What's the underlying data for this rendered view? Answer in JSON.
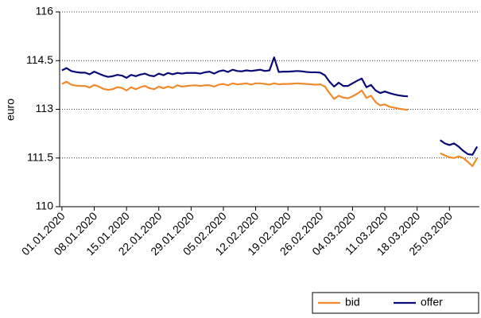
{
  "chart_data": {
    "type": "line",
    "y_label": "euro",
    "categories": [
      "01.01.2020",
      null,
      null,
      null,
      null,
      null,
      null,
      "08.01.2020",
      null,
      null,
      null,
      null,
      null,
      null,
      "15.01.2020",
      null,
      null,
      null,
      null,
      null,
      null,
      "22.01.2020",
      null,
      null,
      null,
      null,
      null,
      null,
      "29.01.2020",
      null,
      null,
      null,
      null,
      null,
      null,
      "05.02.2020",
      null,
      null,
      null,
      null,
      null,
      null,
      "12.02.2020",
      null,
      null,
      null,
      null,
      null,
      null,
      "19.02.2020",
      null,
      null,
      null,
      null,
      null,
      null,
      "26.02.2020",
      null,
      null,
      null,
      null,
      null,
      null,
      "04.03.2020",
      null,
      null,
      null,
      null,
      null,
      null,
      "11.03.2020",
      null,
      null,
      null,
      null,
      null,
      null,
      "18.03.2020",
      null,
      null,
      null,
      null,
      null,
      null,
      "25.03.2020",
      null,
      null,
      null,
      null,
      null,
      null
    ],
    "series": [
      {
        "name": "bid",
        "color": "#f08a2c",
        "values": [
          113.78,
          113.85,
          113.76,
          113.73,
          113.72,
          113.72,
          113.67,
          113.75,
          113.7,
          113.63,
          113.6,
          113.62,
          113.68,
          113.66,
          113.58,
          113.68,
          113.62,
          113.68,
          113.72,
          113.65,
          113.62,
          113.7,
          113.65,
          113.7,
          113.66,
          113.74,
          113.7,
          113.72,
          113.73,
          113.74,
          113.72,
          113.74,
          113.74,
          113.7,
          113.76,
          113.78,
          113.74,
          113.8,
          113.77,
          113.78,
          113.8,
          113.76,
          113.8,
          113.8,
          113.78,
          113.76,
          113.8,
          113.77,
          113.78,
          113.78,
          113.79,
          113.8,
          113.79,
          113.78,
          113.77,
          113.76,
          113.77,
          113.7,
          113.5,
          113.32,
          113.42,
          113.36,
          113.34,
          113.4,
          113.48,
          113.58,
          113.35,
          113.42,
          113.22,
          113.12,
          113.15,
          113.08,
          113.05,
          113.02,
          113.0,
          112.98,
          null,
          null,
          null,
          null,
          null,
          null,
          111.65,
          111.58,
          111.52,
          111.5,
          111.55,
          111.5,
          111.38,
          111.25,
          111.5
        ]
      },
      {
        "name": "offer",
        "color": "#0a0a78",
        "values": [
          114.2,
          114.27,
          114.18,
          114.15,
          114.13,
          114.13,
          114.08,
          114.16,
          114.1,
          114.04,
          114.0,
          114.02,
          114.06,
          114.04,
          113.97,
          114.06,
          114.02,
          114.07,
          114.1,
          114.04,
          114.02,
          114.1,
          114.05,
          114.12,
          114.08,
          114.12,
          114.1,
          114.12,
          114.12,
          114.12,
          114.1,
          114.14,
          114.16,
          114.1,
          114.17,
          114.2,
          114.15,
          114.22,
          114.18,
          114.17,
          114.2,
          114.18,
          114.2,
          114.22,
          114.18,
          114.2,
          114.6,
          114.15,
          114.16,
          114.16,
          114.17,
          114.18,
          114.17,
          114.15,
          114.14,
          114.14,
          114.13,
          114.05,
          113.85,
          113.7,
          113.82,
          113.72,
          113.72,
          113.8,
          113.88,
          113.95,
          113.68,
          113.75,
          113.58,
          113.5,
          113.55,
          113.5,
          113.46,
          113.43,
          113.41,
          113.4,
          null,
          null,
          null,
          null,
          null,
          null,
          112.05,
          111.95,
          111.9,
          111.95,
          111.85,
          111.72,
          111.62,
          111.6,
          111.85
        ]
      }
    ],
    "ylim": [
      110,
      116
    ],
    "yticks": [
      110,
      111.5,
      113,
      114.5,
      116
    ],
    "grid": true
  }
}
